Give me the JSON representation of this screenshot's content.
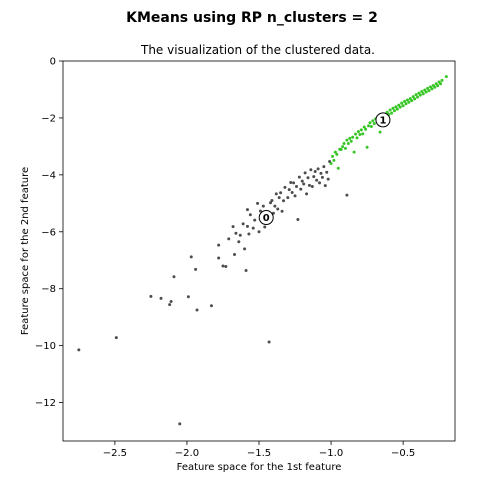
{
  "chart_data": {
    "type": "scatter",
    "suptitle": "KMeans  using RP  n_clusters = 2",
    "title": "The visualization of the clustered data.",
    "xlabel": "Feature space for the 1st feature",
    "ylabel": "Feature space for the 2nd feature",
    "xlim": [
      -2.86,
      -0.14
    ],
    "ylim": [
      -13.35,
      0.0
    ],
    "xticks": [
      -2.5,
      -2.0,
      -1.5,
      -1.0,
      -0.5
    ],
    "yticks": [
      0,
      -2,
      -4,
      -6,
      -8,
      -10,
      -12
    ],
    "xtick_labels": [
      "−2.5",
      "−2.0",
      "−1.5",
      "−1.0",
      "−0.5"
    ],
    "ytick_labels": [
      "0",
      "−2",
      "−4",
      "−6",
      "−8",
      "−10",
      "−12"
    ],
    "colors": {
      "cluster_0": "#3a3a3a",
      "cluster_1": "#22c00e"
    },
    "centers": [
      {
        "label": "0",
        "x": -1.45,
        "y": -5.5
      },
      {
        "label": "1",
        "x": -0.64,
        "y": -2.07
      }
    ],
    "series": [
      {
        "cluster": 0,
        "points": [
          [
            -2.75,
            -10.15
          ],
          [
            -2.49,
            -9.72
          ],
          [
            -2.25,
            -8.27
          ],
          [
            -2.18,
            -8.34
          ],
          [
            -2.12,
            -8.56
          ],
          [
            -2.11,
            -8.45
          ],
          [
            -2.09,
            -7.58
          ],
          [
            -2.05,
            -12.75
          ],
          [
            -1.99,
            -8.28
          ],
          [
            -1.97,
            -6.88
          ],
          [
            -1.94,
            -7.32
          ],
          [
            -1.93,
            -8.75
          ],
          [
            -1.83,
            -8.6
          ],
          [
            -1.78,
            -6.92
          ],
          [
            -1.78,
            -6.47
          ],
          [
            -1.75,
            -7.2
          ],
          [
            -1.73,
            -7.22
          ],
          [
            -1.71,
            -6.25
          ],
          [
            -1.68,
            -5.82
          ],
          [
            -1.67,
            -6.8
          ],
          [
            -1.66,
            -6.05
          ],
          [
            -1.64,
            -6.35
          ],
          [
            -1.63,
            -6.12
          ],
          [
            -1.61,
            -5.72
          ],
          [
            -1.6,
            -6.6
          ],
          [
            -1.59,
            -7.36
          ],
          [
            -1.58,
            -5.81
          ],
          [
            -1.58,
            -5.22
          ],
          [
            -1.57,
            -6.08
          ],
          [
            -1.56,
            -5.4
          ],
          [
            -1.54,
            -5.87
          ],
          [
            -1.53,
            -5.59
          ],
          [
            -1.51,
            -5.0
          ],
          [
            -1.5,
            -6.0
          ],
          [
            -1.49,
            -5.27
          ],
          [
            -1.48,
            -5.4
          ],
          [
            -1.47,
            -5.1
          ],
          [
            -1.46,
            -5.83
          ],
          [
            -1.43,
            -9.87
          ],
          [
            -1.42,
            -4.98
          ],
          [
            -1.41,
            -4.9
          ],
          [
            -1.4,
            -5.35
          ],
          [
            -1.39,
            -5.1
          ],
          [
            -1.38,
            -4.67
          ],
          [
            -1.37,
            -5.2
          ],
          [
            -1.36,
            -4.8
          ],
          [
            -1.35,
            -4.63
          ],
          [
            -1.34,
            -5.28
          ],
          [
            -1.33,
            -4.91
          ],
          [
            -1.32,
            -4.44
          ],
          [
            -1.3,
            -4.8
          ],
          [
            -1.29,
            -4.52
          ],
          [
            -1.28,
            -4.27
          ],
          [
            -1.27,
            -4.62
          ],
          [
            -1.26,
            -4.28
          ],
          [
            -1.25,
            -4.74
          ],
          [
            -1.24,
            -4.41
          ],
          [
            -1.23,
            -5.57
          ],
          [
            -1.22,
            -4.08
          ],
          [
            -1.21,
            -4.5
          ],
          [
            -1.2,
            -4.22
          ],
          [
            -1.19,
            -4.32
          ],
          [
            -1.18,
            -3.93
          ],
          [
            -1.17,
            -4.67
          ],
          [
            -1.16,
            -4.1
          ],
          [
            -1.15,
            -4.37
          ],
          [
            -1.14,
            -3.82
          ],
          [
            -1.13,
            -4.41
          ],
          [
            -1.12,
            -4.06
          ],
          [
            -1.11,
            -3.88
          ],
          [
            -1.1,
            -4.19
          ],
          [
            -1.09,
            -3.79
          ],
          [
            -1.08,
            -4.28
          ],
          [
            -1.07,
            -3.95
          ],
          [
            -1.06,
            -4.09
          ],
          [
            -1.05,
            -3.71
          ],
          [
            -1.04,
            -4.38
          ],
          [
            -1.03,
            -3.91
          ],
          [
            -1.02,
            -4.15
          ],
          [
            -1.01,
            -3.53
          ],
          [
            -0.89,
            -4.71
          ]
        ]
      },
      {
        "cluster": 1,
        "points": [
          [
            -1.0,
            -3.6
          ],
          [
            -0.99,
            -3.35
          ],
          [
            -0.98,
            -3.49
          ],
          [
            -0.97,
            -3.2
          ],
          [
            -0.96,
            -3.28
          ],
          [
            -0.95,
            -3.77
          ],
          [
            -0.94,
            -3.1
          ],
          [
            -0.93,
            -3.11
          ],
          [
            -0.92,
            -3.01
          ],
          [
            -0.91,
            -2.9
          ],
          [
            -0.9,
            -3.07
          ],
          [
            -0.89,
            -2.78
          ],
          [
            -0.88,
            -2.9
          ],
          [
            -0.87,
            -2.72
          ],
          [
            -0.86,
            -2.82
          ],
          [
            -0.85,
            -2.68
          ],
          [
            -0.84,
            -3.2
          ],
          [
            -0.83,
            -2.57
          ],
          [
            -0.82,
            -2.7
          ],
          [
            -0.81,
            -2.48
          ],
          [
            -0.8,
            -2.58
          ],
          [
            -0.79,
            -2.42
          ],
          [
            -0.78,
            -2.56
          ],
          [
            -0.77,
            -2.32
          ],
          [
            -0.76,
            -2.4
          ],
          [
            -0.75,
            -3.03
          ],
          [
            -0.74,
            -2.28
          ],
          [
            -0.73,
            -2.17
          ],
          [
            -0.72,
            -2.3
          ],
          [
            -0.71,
            -2.1
          ],
          [
            -0.7,
            -2.2
          ],
          [
            -0.69,
            -2.03
          ],
          [
            -0.68,
            -2.14
          ],
          [
            -0.67,
            -1.98
          ],
          [
            -0.66,
            -2.5
          ],
          [
            -0.65,
            -1.92
          ],
          [
            -0.64,
            -2.02
          ],
          [
            -0.63,
            -1.86
          ],
          [
            -0.62,
            -1.95
          ],
          [
            -0.61,
            -1.8
          ],
          [
            -0.6,
            -1.88
          ],
          [
            -0.59,
            -1.72
          ],
          [
            -0.58,
            -1.83
          ],
          [
            -0.57,
            -1.66
          ],
          [
            -0.56,
            -1.75
          ],
          [
            -0.55,
            -1.61
          ],
          [
            -0.54,
            -1.69
          ],
          [
            -0.53,
            -1.55
          ],
          [
            -0.52,
            -1.62
          ],
          [
            -0.51,
            -1.48
          ],
          [
            -0.5,
            -1.57
          ],
          [
            -0.49,
            -1.42
          ],
          [
            -0.48,
            -1.5
          ],
          [
            -0.47,
            -1.37
          ],
          [
            -0.46,
            -1.45
          ],
          [
            -0.45,
            -1.32
          ],
          [
            -0.44,
            -1.39
          ],
          [
            -0.43,
            -1.25
          ],
          [
            -0.42,
            -1.33
          ],
          [
            -0.41,
            -1.18
          ],
          [
            -0.4,
            -1.27
          ],
          [
            -0.39,
            -1.13
          ],
          [
            -0.38,
            -1.2
          ],
          [
            -0.37,
            -1.07
          ],
          [
            -0.36,
            -1.15
          ],
          [
            -0.35,
            -1.02
          ],
          [
            -0.34,
            -1.09
          ],
          [
            -0.33,
            -0.96
          ],
          [
            -0.32,
            -1.04
          ],
          [
            -0.31,
            -0.91
          ],
          [
            -0.3,
            -0.98
          ],
          [
            -0.29,
            -0.86
          ],
          [
            -0.28,
            -0.92
          ],
          [
            -0.27,
            -0.8
          ],
          [
            -0.26,
            -0.87
          ],
          [
            -0.25,
            -0.74
          ],
          [
            -0.24,
            -0.8
          ],
          [
            -0.23,
            -0.68
          ],
          [
            -0.2,
            -0.55
          ]
        ]
      }
    ]
  }
}
